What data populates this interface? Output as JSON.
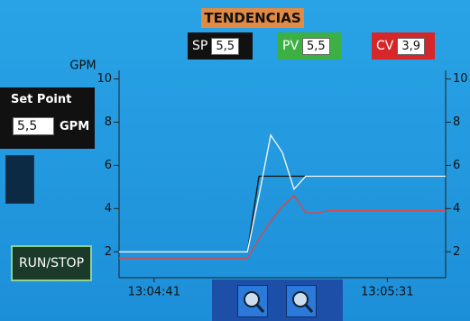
{
  "header": {
    "title": "TENDENCIAS",
    "sp": {
      "label": "SP",
      "value": "5,5"
    },
    "pv": {
      "label": "PV",
      "value": "5,5"
    },
    "cv": {
      "label": "CV",
      "value": "3,9"
    }
  },
  "set_point_panel": {
    "title": "Set Point",
    "value": "5,5",
    "unit": "GPM"
  },
  "run_button": {
    "label": "RUN/STOP"
  },
  "chart_data": {
    "type": "line",
    "y_label": "GPM",
    "categories": [
      null,
      null,
      null,
      "13:04:41",
      null,
      null,
      null,
      null,
      null,
      null,
      null,
      null,
      null,
      null,
      null,
      null,
      null,
      null,
      null,
      null,
      null,
      null,
      null,
      "13:05:31",
      null,
      null,
      null,
      null,
      null
    ],
    "ylim": [
      0.8,
      10.4
    ],
    "yticks": [
      2,
      4,
      6,
      8,
      10
    ],
    "series": [
      {
        "name": "SP",
        "color": "#1a1a1a",
        "values": [
          2,
          2,
          2,
          2,
          2,
          2,
          2,
          2,
          2,
          2,
          2,
          2,
          5.5,
          5.5,
          5.5,
          5.5,
          5.5,
          5.5,
          5.5,
          5.5,
          5.5,
          5.5,
          5.5,
          5.5,
          5.5,
          5.5,
          5.5,
          5.5,
          5.5
        ]
      },
      {
        "name": "PV",
        "color": "#f4f4f4",
        "values": [
          2,
          2,
          2,
          2,
          2,
          2,
          2,
          2,
          2,
          2,
          2,
          2,
          4.6,
          7.4,
          6.6,
          4.9,
          5.5,
          5.5,
          5.5,
          5.5,
          5.5,
          5.5,
          5.5,
          5.5,
          5.5,
          5.5,
          5.5,
          5.5,
          5.5
        ]
      },
      {
        "name": "CV",
        "color": "#d8484a",
        "values": [
          1.7,
          1.7,
          1.7,
          1.7,
          1.7,
          1.7,
          1.7,
          1.7,
          1.7,
          1.7,
          1.7,
          1.7,
          2.6,
          3.4,
          4.1,
          4.6,
          3.8,
          3.8,
          3.9,
          3.9,
          3.9,
          3.9,
          3.9,
          3.9,
          3.9,
          3.9,
          3.9,
          3.9,
          3.9
        ]
      }
    ]
  }
}
